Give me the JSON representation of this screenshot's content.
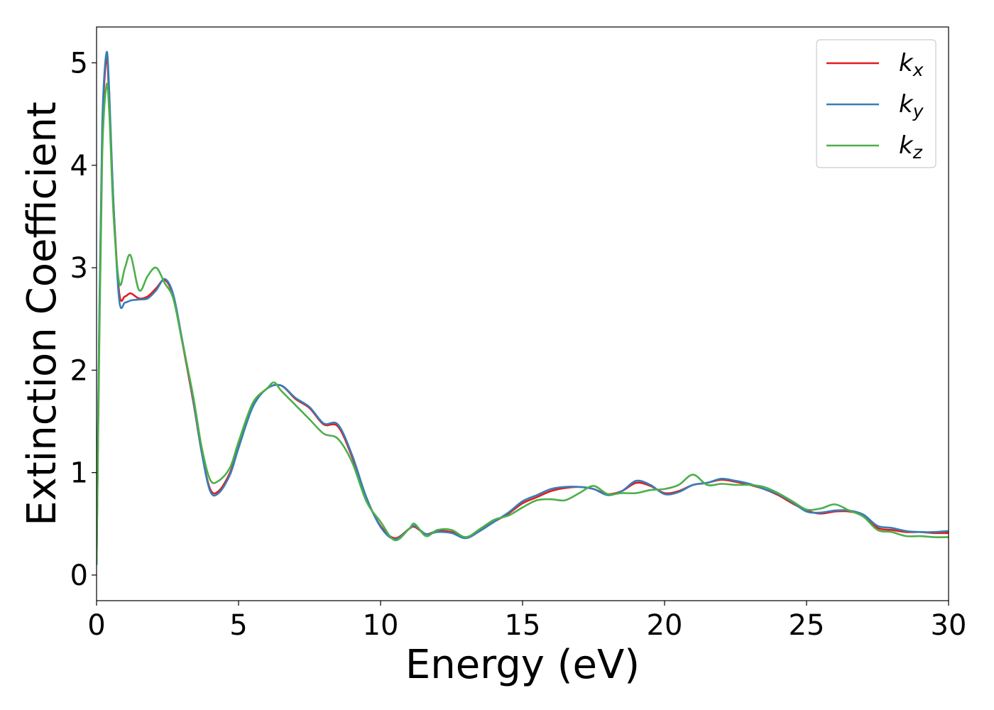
{
  "chart_data": {
    "type": "line",
    "xlabel": "Energy (eV)",
    "ylabel": "Extinction Coefficient",
    "xlim": [
      0,
      30
    ],
    "ylim": [
      -0.25,
      5.35
    ],
    "xticks": [
      "0",
      "5",
      "10",
      "15",
      "20",
      "25",
      "30"
    ],
    "yticks": [
      "0",
      "1",
      "2",
      "3",
      "4",
      "5"
    ],
    "grid": false,
    "legend_position": "top-right",
    "series": [
      {
        "name": "k_x",
        "label_base": "k",
        "label_sub": "x",
        "color": "#e41a1c",
        "x": [
          0,
          0.1,
          0.2,
          0.35,
          0.45,
          0.6,
          0.8,
          1.0,
          1.2,
          1.5,
          1.8,
          2.1,
          2.4,
          2.7,
          3.0,
          3.4,
          3.7,
          4.0,
          4.3,
          4.7,
          5.0,
          5.5,
          6.0,
          6.5,
          7.0,
          7.5,
          8.0,
          8.5,
          9.0,
          9.5,
          10.0,
          10.5,
          11.0,
          11.2,
          11.6,
          12.0,
          12.5,
          13.0,
          13.5,
          14.0,
          14.5,
          15.0,
          15.5,
          16.0,
          16.5,
          17.0,
          17.5,
          18.0,
          18.5,
          19.0,
          19.5,
          20.0,
          20.5,
          21.0,
          21.5,
          22.0,
          22.5,
          23.0,
          23.5,
          24.0,
          24.5,
          25.0,
          25.5,
          26.0,
          26.5,
          27.0,
          27.5,
          28.0,
          28.5,
          29.0,
          29.5,
          30.0
        ],
        "y": [
          0.1,
          2.5,
          4.3,
          5.05,
          4.6,
          3.6,
          2.75,
          2.72,
          2.75,
          2.7,
          2.72,
          2.8,
          2.88,
          2.72,
          2.3,
          1.7,
          1.2,
          0.84,
          0.82,
          1.0,
          1.25,
          1.65,
          1.82,
          1.85,
          1.72,
          1.63,
          1.47,
          1.45,
          1.15,
          0.75,
          0.48,
          0.36,
          0.45,
          0.47,
          0.4,
          0.43,
          0.42,
          0.37,
          0.44,
          0.52,
          0.6,
          0.7,
          0.76,
          0.82,
          0.85,
          0.86,
          0.84,
          0.79,
          0.82,
          0.9,
          0.87,
          0.8,
          0.82,
          0.88,
          0.9,
          0.93,
          0.91,
          0.88,
          0.84,
          0.78,
          0.7,
          0.63,
          0.6,
          0.62,
          0.62,
          0.58,
          0.46,
          0.44,
          0.42,
          0.42,
          0.41,
          0.41
        ]
      },
      {
        "name": "k_y",
        "label_base": "k",
        "label_sub": "y",
        "color": "#377eb8",
        "x": [
          0,
          0.1,
          0.2,
          0.35,
          0.45,
          0.6,
          0.8,
          1.0,
          1.2,
          1.5,
          1.8,
          2.1,
          2.4,
          2.7,
          3.0,
          3.4,
          3.7,
          4.0,
          4.3,
          4.7,
          5.0,
          5.5,
          6.0,
          6.5,
          7.0,
          7.5,
          8.0,
          8.5,
          9.0,
          9.5,
          10.0,
          10.5,
          11.0,
          11.2,
          11.6,
          12.0,
          12.5,
          13.0,
          13.5,
          14.0,
          14.5,
          15.0,
          15.5,
          16.0,
          16.5,
          17.0,
          17.5,
          18.0,
          18.5,
          19.0,
          19.5,
          20.0,
          20.5,
          21.0,
          21.5,
          22.0,
          22.5,
          23.0,
          23.5,
          24.0,
          24.5,
          25.0,
          25.5,
          26.0,
          26.5,
          27.0,
          27.5,
          28.0,
          28.5,
          29.0,
          29.5,
          30.0
        ],
        "y": [
          0.1,
          2.6,
          4.4,
          5.1,
          4.7,
          3.6,
          2.68,
          2.66,
          2.68,
          2.69,
          2.7,
          2.78,
          2.89,
          2.74,
          2.32,
          1.72,
          1.2,
          0.82,
          0.8,
          0.98,
          1.24,
          1.64,
          1.82,
          1.85,
          1.73,
          1.64,
          1.48,
          1.47,
          1.17,
          0.76,
          0.47,
          0.35,
          0.45,
          0.48,
          0.4,
          0.42,
          0.41,
          0.36,
          0.43,
          0.52,
          0.61,
          0.72,
          0.78,
          0.84,
          0.86,
          0.86,
          0.84,
          0.78,
          0.82,
          0.92,
          0.88,
          0.79,
          0.81,
          0.88,
          0.9,
          0.94,
          0.92,
          0.89,
          0.84,
          0.79,
          0.71,
          0.62,
          0.61,
          0.63,
          0.63,
          0.59,
          0.48,
          0.46,
          0.43,
          0.42,
          0.42,
          0.43
        ]
      },
      {
        "name": "k_z",
        "label_base": "k",
        "label_sub": "z",
        "color": "#4daf4a",
        "x": [
          0,
          0.1,
          0.2,
          0.35,
          0.45,
          0.6,
          0.8,
          1.0,
          1.2,
          1.5,
          1.8,
          2.1,
          2.4,
          2.7,
          3.0,
          3.4,
          3.7,
          4.0,
          4.3,
          4.7,
          5.0,
          5.5,
          6.0,
          6.25,
          6.5,
          7.0,
          7.5,
          8.0,
          8.5,
          9.0,
          9.5,
          10.0,
          10.5,
          11.0,
          11.2,
          11.6,
          12.0,
          12.5,
          13.0,
          13.5,
          14.0,
          14.5,
          15.0,
          15.5,
          16.0,
          16.5,
          17.0,
          17.5,
          18.0,
          18.5,
          19.0,
          19.5,
          20.0,
          20.5,
          21.0,
          21.5,
          22.0,
          22.5,
          23.0,
          23.5,
          24.0,
          24.5,
          25.0,
          25.5,
          26.0,
          26.5,
          27.0,
          27.5,
          28.0,
          28.5,
          29.0,
          29.5,
          30.0
        ],
        "y": [
          0.1,
          2.3,
          4.1,
          4.78,
          4.5,
          3.5,
          2.85,
          3.0,
          3.12,
          2.78,
          2.92,
          3.0,
          2.85,
          2.7,
          2.3,
          1.75,
          1.25,
          0.93,
          0.92,
          1.05,
          1.3,
          1.68,
          1.82,
          1.88,
          1.8,
          1.66,
          1.52,
          1.38,
          1.33,
          1.1,
          0.72,
          0.52,
          0.34,
          0.45,
          0.5,
          0.38,
          0.44,
          0.44,
          0.37,
          0.45,
          0.54,
          0.58,
          0.66,
          0.73,
          0.74,
          0.73,
          0.8,
          0.87,
          0.79,
          0.8,
          0.8,
          0.83,
          0.84,
          0.88,
          0.98,
          0.88,
          0.89,
          0.88,
          0.88,
          0.86,
          0.8,
          0.72,
          0.64,
          0.65,
          0.69,
          0.63,
          0.57,
          0.44,
          0.42,
          0.38,
          0.38,
          0.37,
          0.37
        ]
      }
    ]
  }
}
